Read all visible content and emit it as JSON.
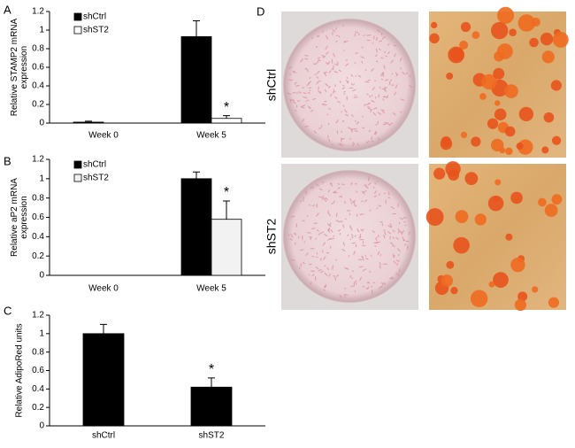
{
  "chart_data": [
    {
      "type": "bar",
      "panel": "A",
      "y_label": [
        "Relative STAMP2 mRNA",
        "expression"
      ],
      "categories": [
        "Week 0",
        "Week 5"
      ],
      "series": [
        {
          "name": "shCtrl",
          "color": "#000000",
          "values": [
            0.01,
            0.93
          ],
          "errors": [
            0.01,
            0.17
          ]
        },
        {
          "name": "shST2",
          "color": "#ffffff",
          "values": [
            0,
            0.05
          ],
          "errors": [
            0,
            0.03
          ]
        }
      ],
      "annotation": "*",
      "ylim": [
        0,
        1.2
      ],
      "yticks": [
        0,
        0.2,
        0.4,
        0.6,
        0.8,
        1,
        1.2
      ]
    },
    {
      "type": "bar",
      "panel": "B",
      "y_label": [
        "Relative aP2 mRNA",
        "expression"
      ],
      "categories": [
        "Week 0",
        "Week 5"
      ],
      "series": [
        {
          "name": "shCtrl",
          "color": "#000000",
          "values": [
            0,
            1.0
          ],
          "errors": [
            0,
            0.07
          ]
        },
        {
          "name": "shST2",
          "color": "#f2f2f2",
          "values": [
            0,
            0.58
          ],
          "errors": [
            0,
            0.19
          ]
        }
      ],
      "annotation": "*",
      "ylim": [
        0,
        1.2
      ],
      "yticks": [
        0,
        0.2,
        0.4,
        0.6,
        0.8,
        1,
        1.2
      ]
    },
    {
      "type": "bar",
      "panel": "C",
      "y_label": [
        "Relative AdipoRed units"
      ],
      "categories": [
        "shCtrl",
        "shST2"
      ],
      "values": [
        1.0,
        0.42
      ],
      "errors": [
        0.1,
        0.1
      ],
      "color": "#000000",
      "annotation": "*",
      "ylim": [
        0,
        1.2
      ],
      "yticks": [
        0,
        0.2,
        0.4,
        0.6,
        0.8,
        1,
        1.2
      ]
    }
  ],
  "panel_d": {
    "panel": "D",
    "rows": [
      "shCtrl",
      "shST2"
    ]
  }
}
